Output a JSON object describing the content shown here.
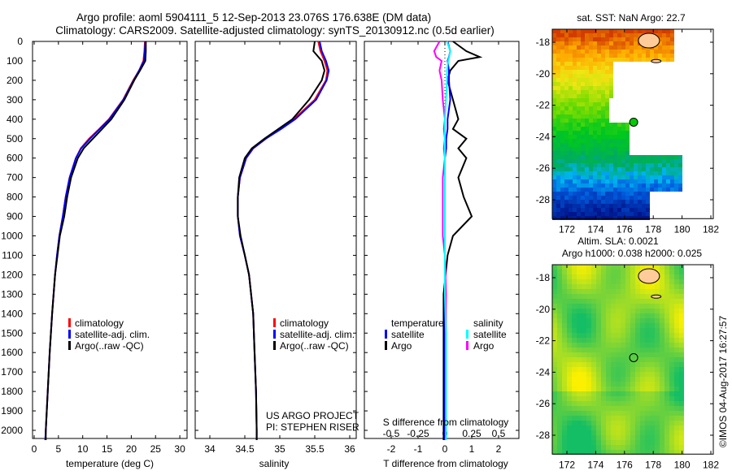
{
  "title_line1": "Argo profile: aoml 5904111_5 12-Sep-2013 23.076S 176.638E (DM data)",
  "title_line2": "Climatology: CARS2009. Satellite-adjusted climatology: synTS_20130912.nc (0.5d earlier)",
  "credits": {
    "project": "US ARGO PROJECT",
    "pi": "PI: STEPHEN RISER",
    "timestamp": "©IMOS 04-Aug-2017 16:27:57"
  },
  "colors": {
    "climatology": "#ff0000",
    "satellite_adj": "#0000ff",
    "argo": "#000000",
    "s_satellite": "#00ffff",
    "s_argo": "#ff00ff",
    "island": "#ffcc99"
  },
  "chart_data": [
    {
      "type": "line",
      "name": "temperature-profile",
      "xlabel": "temperature (deg C)",
      "ylabel": "",
      "xlim": [
        -1,
        31
      ],
      "ylim": [
        2050,
        0
      ],
      "xticks": [
        "0",
        "5",
        "10",
        "15",
        "20",
        "25",
        "30"
      ],
      "xtick_values": [
        0,
        5,
        10,
        15,
        20,
        25,
        30
      ],
      "yticks": [
        "0",
        "100",
        "200",
        "300",
        "400",
        "500",
        "600",
        "700",
        "800",
        "900",
        "1000",
        "1100",
        "1200",
        "1300",
        "1400",
        "1500",
        "1600",
        "1700",
        "1800",
        "1900",
        "2000"
      ],
      "ytick_values": [
        0,
        100,
        200,
        300,
        400,
        500,
        600,
        700,
        800,
        900,
        1000,
        1100,
        1200,
        1300,
        1400,
        1500,
        1600,
        1700,
        1800,
        1900,
        2000
      ],
      "legend": [
        "climatology",
        "satellite-adj. clim.",
        "Argo(..raw -QC)"
      ],
      "depth": [
        0,
        50,
        100,
        150,
        200,
        300,
        400,
        450,
        500,
        550,
        600,
        700,
        800,
        900,
        1000,
        1100,
        1200,
        1300,
        1400,
        1600,
        1800,
        2000,
        2050
      ],
      "series": [
        {
          "name": "climatology",
          "values": [
            22.8,
            22.7,
            22.5,
            21.6,
            20.4,
            18.3,
            15.4,
            13.4,
            11.3,
            9.6,
            8.6,
            7.3,
            6.5,
            5.9,
            5.2,
            4.7,
            4.3,
            4.0,
            3.7,
            3.2,
            2.8,
            2.4,
            2.3
          ]
        },
        {
          "name": "satellite-adj. clim.",
          "values": [
            22.9,
            22.8,
            22.6,
            21.6,
            20.5,
            18.4,
            15.5,
            13.5,
            11.5,
            9.7,
            8.6,
            7.3,
            6.5,
            5.9,
            5.2,
            4.7,
            4.3,
            4.0,
            3.7,
            3.2,
            2.8,
            2.4,
            2.3
          ]
        },
        {
          "name": "Argo(..raw -QC)",
          "values": [
            23.0,
            23.0,
            22.9,
            21.8,
            20.6,
            18.6,
            15.9,
            14.0,
            12.1,
            10.2,
            9.0,
            7.6,
            6.8,
            6.2,
            5.3,
            4.8,
            4.3,
            4.0,
            3.7,
            3.2,
            2.8,
            2.4,
            2.4
          ]
        }
      ]
    },
    {
      "type": "line",
      "name": "salinity-profile",
      "xlabel": "salinity",
      "xlim": [
        33.8,
        36.1
      ],
      "ylim": [
        2050,
        0
      ],
      "xticks": [
        "34",
        "34.5",
        "35",
        "35.5",
        "36"
      ],
      "xtick_values": [
        34,
        34.5,
        35,
        35.5,
        36
      ],
      "legend": [
        "climatology",
        "satellite-adj. clim.",
        "Argo(..raw -QC)"
      ],
      "depth": [
        0,
        50,
        100,
        150,
        200,
        300,
        400,
        450,
        500,
        550,
        600,
        700,
        800,
        900,
        1000,
        1100,
        1200,
        1400,
        1600,
        1800,
        2000,
        2050
      ],
      "series": [
        {
          "name": "climatology",
          "values": [
            35.55,
            35.58,
            35.64,
            35.68,
            35.66,
            35.5,
            35.2,
            35.0,
            34.8,
            34.62,
            34.52,
            34.43,
            34.4,
            34.4,
            34.43,
            34.5,
            34.56,
            34.62,
            34.64,
            34.66,
            34.67,
            34.67
          ]
        },
        {
          "name": "satellite-adj. clim.",
          "values": [
            35.57,
            35.6,
            35.66,
            35.7,
            35.67,
            35.52,
            35.22,
            35.02,
            34.8,
            34.62,
            34.52,
            34.43,
            34.4,
            34.4,
            34.43,
            34.5,
            34.56,
            34.62,
            34.64,
            34.66,
            34.67,
            34.67
          ]
        },
        {
          "name": "Argo(..raw -QC)",
          "values": [
            35.5,
            35.48,
            35.6,
            35.64,
            35.6,
            35.42,
            35.18,
            34.98,
            34.78,
            34.6,
            34.5,
            34.42,
            34.4,
            34.4,
            34.44,
            34.5,
            34.56,
            34.62,
            34.64,
            34.66,
            34.67,
            34.67
          ]
        }
      ]
    },
    {
      "type": "line",
      "name": "difference-profile",
      "xlabel": "T difference from climatology",
      "xlabel_top": "S difference from climatology",
      "xlim": [
        -3,
        3
      ],
      "ylim": [
        2050,
        0
      ],
      "xticks": [
        "-2",
        "-1",
        "0",
        "1",
        "2"
      ],
      "xtick_values": [
        -2,
        -1,
        0,
        1,
        2
      ],
      "s_xticks": [
        "-0.5",
        "-0.25",
        "0",
        "0.25",
        "0.5"
      ],
      "s_xtick_values": [
        -0.5,
        -0.25,
        0,
        0.25,
        0.5
      ],
      "legend_temperature": {
        "title": "temperature",
        "items": [
          "satellite",
          "Argo"
        ]
      },
      "legend_salinity": {
        "title": "salinity",
        "items": [
          "satellite",
          "Argo"
        ]
      },
      "depth": [
        0,
        50,
        80,
        100,
        150,
        200,
        300,
        400,
        450,
        500,
        550,
        600,
        700,
        800,
        900,
        1000,
        1100,
        1300,
        1500,
        1800,
        2000,
        2050
      ],
      "series": [
        {
          "name": "T satellite",
          "values": [
            0.1,
            0.2,
            0.15,
            0.1,
            0.15,
            0.15,
            0.2,
            0.1,
            0.1,
            0.05,
            0.05,
            0,
            0,
            0,
            0,
            0,
            0,
            0,
            0,
            0,
            0,
            0
          ]
        },
        {
          "name": "T Argo",
          "values": [
            0.3,
            0.8,
            1.3,
            0.5,
            0.2,
            0.1,
            0.3,
            0.5,
            0.3,
            0.8,
            0.5,
            0.8,
            0.5,
            0.7,
            1.0,
            0.3,
            0.1,
            -0.05,
            -0.05,
            -0.05,
            -0.05,
            -0.05
          ]
        },
        {
          "name": "S satellite",
          "values": [
            0.02,
            0.05,
            0.04,
            0.03,
            0.02,
            0.02,
            0.01,
            0,
            0,
            0,
            0,
            0,
            0,
            0,
            0,
            0,
            0,
            0,
            0.01,
            0.01,
            0.01,
            0.01
          ]
        },
        {
          "name": "S Argo",
          "values": [
            -0.05,
            -0.1,
            -0.08,
            -0.03,
            -0.05,
            -0.03,
            -0.02,
            0,
            -0.01,
            0,
            -0.01,
            0,
            -0.02,
            -0.02,
            -0.02,
            -0.02,
            0,
            0.01,
            0.01,
            0.01,
            0.01,
            0.01
          ]
        }
      ]
    },
    {
      "type": "heatmap",
      "name": "sst-map",
      "title": "sat. SST: NaN Argo: 22.7",
      "xticks": [
        "172",
        "174",
        "176",
        "178",
        "180",
        "182"
      ],
      "xtick_values": [
        172,
        174,
        176,
        178,
        180,
        182
      ],
      "yticks": [
        "-18",
        "-20",
        "-22",
        "-24",
        "-26",
        "-28"
      ],
      "ytick_values": [
        -18,
        -20,
        -22,
        -24,
        -26,
        -28
      ],
      "xlim": [
        171,
        182.5
      ],
      "ylim": [
        -29.2,
        -17.2
      ],
      "marker": {
        "lon": 176.638,
        "lat": -23.076
      }
    },
    {
      "type": "heatmap",
      "name": "sla-map",
      "title_line1": "Altim. SLA: 0.0021",
      "title_line2": "Argo h1000: 0.038 h2000: 0.025",
      "xticks": [
        "172",
        "174",
        "176",
        "178",
        "180",
        "182"
      ],
      "xtick_values": [
        172,
        174,
        176,
        178,
        180,
        182
      ],
      "yticks": [
        "-18",
        "-20",
        "-22",
        "-24",
        "-26",
        "-28"
      ],
      "ytick_values": [
        -18,
        -20,
        -22,
        -24,
        -26,
        -28
      ],
      "xlim": [
        171,
        182.5
      ],
      "ylim": [
        -29.2,
        -17.2
      ],
      "marker": {
        "lon": 176.638,
        "lat": -23.076
      }
    }
  ]
}
